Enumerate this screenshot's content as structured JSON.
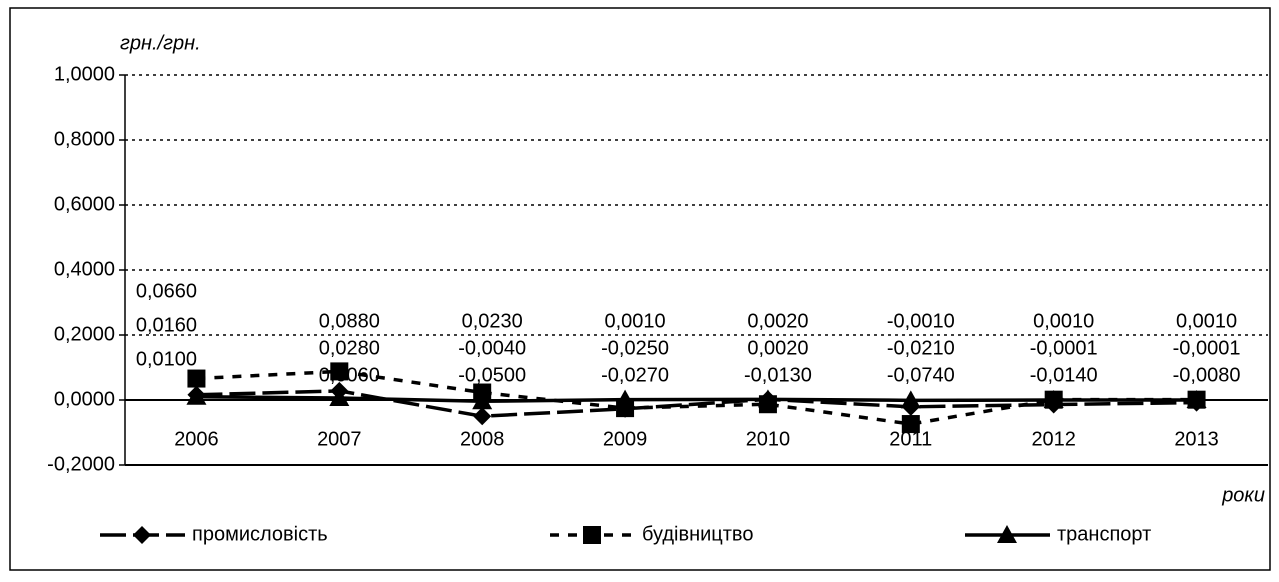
{
  "chart_data": {
    "type": "line",
    "y_label": "грн./грн.",
    "x_label": "роки",
    "categories": [
      "2006",
      "2007",
      "2008",
      "2009",
      "2010",
      "2011",
      "2012",
      "2013"
    ],
    "ylim": [
      -0.2,
      1.0
    ],
    "yticks": [
      {
        "value": -0.2,
        "label": "-0,2000"
      },
      {
        "value": 0,
        "label": "0,0000"
      },
      {
        "value": 0.2,
        "label": "0,2000"
      },
      {
        "value": 0.4,
        "label": "0,4000"
      },
      {
        "value": 0.6,
        "label": "0,6000"
      },
      {
        "value": 0.8,
        "label": "0,8000"
      },
      {
        "value": 1.0,
        "label": "1,0000"
      }
    ],
    "grid": true,
    "legend": "bottom",
    "series": [
      {
        "name": "промисловість",
        "color": "#000000",
        "marker": "diamond",
        "dash": "long-dash",
        "values": [
          0.016,
          0.028,
          -0.05,
          -0.027,
          0.002,
          -0.021,
          -0.014,
          -0.008
        ],
        "value_labels": [
          "0,0160",
          "0,0280",
          "-0,0500",
          "-0,0270",
          "0,0020",
          "-0,0210",
          "-0,0140",
          "-0,0080"
        ]
      },
      {
        "name": "будівництво",
        "color": "#000000",
        "marker": "square",
        "dash": "short-dash",
        "values": [
          0.066,
          0.088,
          0.023,
          -0.025,
          -0.013,
          -0.074,
          0.001,
          0.001
        ],
        "value_labels": [
          "0,0660",
          "0,0880",
          "0,0230",
          "-0,0250",
          "-0,0130",
          "-0,0740",
          "0,0010",
          "0,0010"
        ]
      },
      {
        "name": "транспорт",
        "color": "#000000",
        "marker": "triangle",
        "dash": "solid",
        "values": [
          0.01,
          0.006,
          -0.004,
          0.001,
          0.002,
          -0.001,
          -0.0001,
          -0.0001
        ],
        "value_labels": [
          "0,0100",
          "0,0060",
          "-0,0040",
          "0,0010",
          "0,0020",
          "-0,0010",
          "-0,0001",
          "-0,0001"
        ]
      }
    ]
  }
}
